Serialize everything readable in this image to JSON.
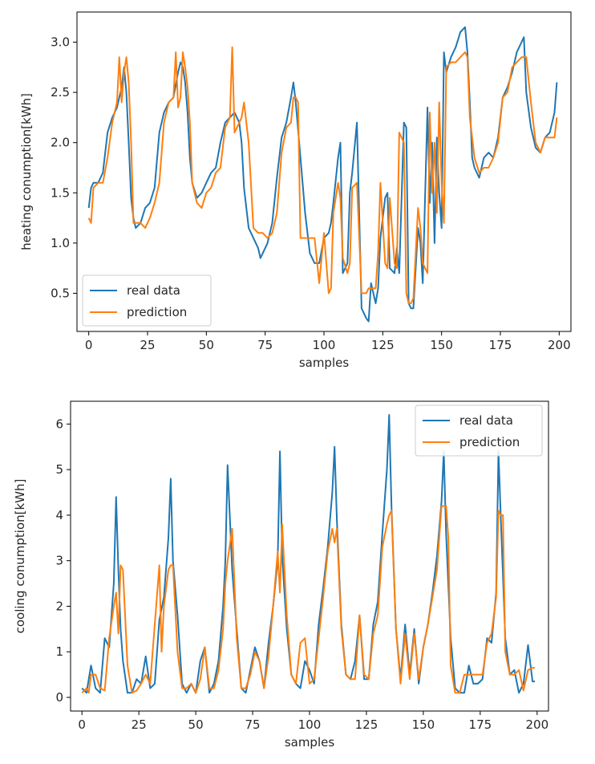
{
  "chart_data": [
    {
      "type": "line",
      "xlabel": "samples",
      "ylabel": "heating conumption[kWh]",
      "xlim": [
        -5,
        205
      ],
      "ylim": [
        0.12,
        3.3
      ],
      "xticks": [
        0,
        25,
        50,
        75,
        100,
        125,
        150,
        175,
        200
      ],
      "xtick_labels": [
        "0",
        "25",
        "50",
        "75",
        "100",
        "125",
        "150",
        "175",
        "200"
      ],
      "yticks": [
        0.5,
        1.0,
        1.5,
        2.0,
        2.5,
        3.0
      ],
      "ytick_labels": [
        "0.5",
        "1.0",
        "1.5",
        "2.0",
        "2.5",
        "3.0"
      ],
      "legend_position": "lower-left",
      "series": [
        {
          "name": "real data",
          "color": "#1f77b4",
          "x": [
            0,
            1,
            2,
            4,
            6,
            8,
            10,
            12,
            14,
            15,
            16,
            17,
            18,
            19,
            20,
            22,
            24,
            26,
            28,
            30,
            32,
            34,
            36,
            38,
            39,
            40,
            41,
            42,
            43,
            44,
            46,
            48,
            50,
            52,
            54,
            56,
            58,
            60,
            62,
            64,
            65,
            66,
            68,
            70,
            72,
            73,
            74,
            76,
            78,
            80,
            82,
            84,
            86,
            87,
            88,
            90,
            92,
            94,
            96,
            98,
            100,
            102,
            103,
            104,
            106,
            107,
            108,
            110,
            111,
            112,
            114,
            116,
            118,
            119,
            120,
            122,
            123,
            124,
            126,
            127,
            128,
            130,
            131,
            132,
            134,
            135,
            136,
            137,
            138,
            140,
            141,
            142,
            144,
            145,
            146,
            147,
            148,
            149,
            150,
            151,
            152,
            154,
            156,
            158,
            160,
            161,
            162,
            163,
            164,
            166,
            168,
            170,
            172,
            174,
            176,
            178,
            180,
            182,
            184,
            185,
            186,
            188,
            190,
            192,
            194,
            196,
            198,
            199
          ],
          "y": [
            1.35,
            1.55,
            1.6,
            1.6,
            1.7,
            2.1,
            2.25,
            2.35,
            2.55,
            2.75,
            2.5,
            2.0,
            1.45,
            1.25,
            1.15,
            1.2,
            1.35,
            1.4,
            1.55,
            2.1,
            2.3,
            2.4,
            2.45,
            2.7,
            2.8,
            2.75,
            2.6,
            2.3,
            1.85,
            1.6,
            1.45,
            1.5,
            1.6,
            1.7,
            1.75,
            2.0,
            2.2,
            2.25,
            2.3,
            2.2,
            2.0,
            1.55,
            1.15,
            1.05,
            0.95,
            0.85,
            0.9,
            1.0,
            1.2,
            1.65,
            2.05,
            2.2,
            2.45,
            2.6,
            2.4,
            1.85,
            1.3,
            0.9,
            0.8,
            0.8,
            1.05,
            1.1,
            1.2,
            1.4,
            1.85,
            2.0,
            0.7,
            0.8,
            1.5,
            1.7,
            2.2,
            0.35,
            0.25,
            0.22,
            0.6,
            0.4,
            0.55,
            1.05,
            1.45,
            1.5,
            0.75,
            0.7,
            0.95,
            0.7,
            2.2,
            2.15,
            0.4,
            0.35,
            0.35,
            1.15,
            1.0,
            0.6,
            2.35,
            1.4,
            2.0,
            1.0,
            2.05,
            1.5,
            1.15,
            2.9,
            2.7,
            2.85,
            2.95,
            3.1,
            3.15,
            2.9,
            2.4,
            1.85,
            1.75,
            1.65,
            1.85,
            1.9,
            1.85,
            2.05,
            2.45,
            2.55,
            2.7,
            2.9,
            3.0,
            3.05,
            2.5,
            2.15,
            1.95,
            1.9,
            2.05,
            2.1,
            2.3,
            2.6
          ]
        },
        {
          "name": "prediction",
          "color": "#ff7f0e",
          "x": [
            0,
            1,
            2,
            4,
            6,
            8,
            10,
            12,
            13,
            14,
            15,
            16,
            17,
            18,
            19,
            20,
            22,
            24,
            26,
            28,
            30,
            32,
            34,
            36,
            37,
            38,
            39,
            40,
            41,
            42,
            43,
            44,
            46,
            48,
            50,
            52,
            54,
            56,
            58,
            60,
            61,
            62,
            64,
            65,
            66,
            68,
            70,
            72,
            73,
            74,
            76,
            78,
            80,
            82,
            84,
            86,
            87,
            88,
            89,
            90,
            92,
            94,
            96,
            98,
            100,
            102,
            103,
            104,
            106,
            107,
            108,
            110,
            111,
            112,
            114,
            116,
            118,
            119,
            120,
            122,
            123,
            124,
            126,
            127,
            128,
            130,
            131,
            132,
            134,
            135,
            136,
            137,
            138,
            140,
            141,
            142,
            144,
            145,
            146,
            147,
            148,
            149,
            150,
            151,
            152,
            154,
            156,
            158,
            160,
            161,
            162,
            164,
            166,
            168,
            170,
            172,
            174,
            176,
            178,
            180,
            182,
            184,
            185,
            186,
            188,
            190,
            192,
            194,
            196,
            198,
            199
          ],
          "y": [
            1.25,
            1.2,
            1.55,
            1.6,
            1.6,
            1.85,
            2.2,
            2.4,
            2.85,
            2.4,
            2.7,
            2.85,
            2.6,
            2.0,
            1.2,
            1.2,
            1.2,
            1.15,
            1.25,
            1.4,
            1.6,
            2.2,
            2.4,
            2.45,
            2.9,
            2.35,
            2.45,
            2.9,
            2.75,
            2.55,
            2.2,
            1.6,
            1.4,
            1.35,
            1.5,
            1.55,
            1.7,
            1.75,
            2.15,
            2.25,
            2.95,
            2.1,
            2.2,
            2.25,
            2.4,
            2.0,
            1.15,
            1.1,
            1.1,
            1.1,
            1.05,
            1.1,
            1.3,
            1.9,
            2.15,
            2.2,
            2.45,
            2.45,
            2.4,
            1.05,
            1.05,
            1.05,
            1.05,
            0.6,
            1.1,
            0.5,
            0.55,
            1.3,
            1.6,
            1.45,
            0.85,
            0.7,
            0.8,
            1.55,
            1.6,
            0.5,
            0.5,
            0.55,
            0.55,
            0.55,
            0.9,
            1.6,
            0.8,
            0.75,
            1.45,
            0.8,
            0.75,
            2.1,
            2.0,
            0.5,
            0.4,
            0.4,
            0.45,
            1.35,
            1.15,
            0.8,
            0.7,
            2.3,
            1.5,
            2.0,
            1.3,
            2.4,
            1.6,
            1.2,
            2.75,
            2.8,
            2.8,
            2.85,
            2.9,
            2.85,
            2.25,
            1.85,
            1.7,
            1.75,
            1.75,
            1.85,
            2.0,
            2.45,
            2.5,
            2.75,
            2.8,
            2.85,
            2.85,
            2.85,
            2.4,
            2.0,
            1.9,
            2.05,
            2.05,
            2.05,
            2.25
          ]
        }
      ]
    },
    {
      "type": "line",
      "xlabel": "samples",
      "ylabel": "cooling conumption[kWh]",
      "xlim": [
        -5,
        205
      ],
      "ylim": [
        -0.3,
        6.5
      ],
      "xticks": [
        0,
        25,
        50,
        75,
        100,
        125,
        150,
        175,
        200
      ],
      "xtick_labels": [
        "0",
        "25",
        "50",
        "75",
        "100",
        "125",
        "150",
        "175",
        "200"
      ],
      "yticks": [
        0,
        1,
        2,
        3,
        4,
        5,
        6
      ],
      "ytick_labels": [
        "0",
        "1",
        "2",
        "3",
        "4",
        "5",
        "6"
      ],
      "legend_position": "upper-right",
      "series": [
        {
          "name": "real data",
          "color": "#1f77b4",
          "x": [
            0,
            2,
            4,
            6,
            8,
            10,
            12,
            14,
            15,
            16,
            17,
            18,
            20,
            22,
            24,
            26,
            28,
            30,
            32,
            34,
            36,
            38,
            39,
            40,
            42,
            44,
            46,
            48,
            50,
            52,
            54,
            56,
            58,
            60,
            62,
            63,
            64,
            66,
            68,
            70,
            72,
            74,
            76,
            78,
            80,
            82,
            84,
            86,
            87,
            88,
            90,
            92,
            94,
            96,
            98,
            100,
            102,
            104,
            106,
            108,
            110,
            111,
            112,
            114,
            116,
            118,
            120,
            122,
            124,
            126,
            128,
            130,
            132,
            134,
            135,
            136,
            138,
            140,
            142,
            144,
            146,
            148,
            150,
            152,
            154,
            156,
            158,
            159,
            160,
            162,
            164,
            166,
            168,
            170,
            172,
            174,
            176,
            178,
            180,
            182,
            183,
            184,
            186,
            188,
            190,
            192,
            194,
            196,
            198,
            199
          ],
          "y": [
            0.2,
            0.1,
            0.7,
            0.2,
            0.1,
            1.3,
            1.1,
            2.5,
            4.4,
            2.8,
            1.5,
            0.8,
            0.1,
            0.1,
            0.4,
            0.3,
            0.9,
            0.2,
            0.3,
            1.7,
            2.2,
            3.5,
            4.8,
            3.0,
            1.8,
            0.3,
            0.1,
            0.3,
            0.1,
            0.8,
            1.1,
            0.1,
            0.3,
            0.8,
            2.0,
            3.0,
            5.1,
            2.8,
            1.5,
            0.2,
            0.1,
            0.6,
            1.1,
            0.8,
            0.2,
            1.2,
            2.0,
            3.0,
            5.4,
            3.1,
            1.5,
            0.5,
            0.3,
            0.2,
            0.8,
            0.6,
            0.3,
            1.6,
            2.4,
            3.3,
            4.5,
            5.5,
            3.9,
            1.6,
            0.5,
            0.4,
            0.8,
            1.8,
            0.4,
            0.4,
            1.6,
            2.1,
            3.6,
            5.0,
            6.2,
            4.2,
            1.5,
            0.4,
            1.6,
            0.5,
            1.5,
            0.3,
            1.1,
            1.6,
            2.3,
            3.1,
            4.3,
            5.4,
            3.6,
            1.3,
            0.2,
            0.1,
            0.1,
            0.7,
            0.3,
            0.3,
            0.4,
            1.3,
            1.2,
            2.3,
            5.4,
            4.0,
            1.3,
            0.5,
            0.6,
            0.1,
            0.3,
            1.15,
            0.35,
            0.35
          ]
        },
        {
          "name": "prediction",
          "color": "#ff7f0e",
          "x": [
            0,
            2,
            3,
            4,
            6,
            8,
            10,
            12,
            14,
            15,
            16,
            17,
            18,
            20,
            22,
            24,
            26,
            28,
            30,
            32,
            34,
            35,
            36,
            38,
            39,
            40,
            42,
            44,
            46,
            48,
            50,
            52,
            54,
            56,
            58,
            60,
            62,
            63,
            64,
            66,
            68,
            70,
            72,
            74,
            76,
            78,
            80,
            82,
            84,
            86,
            87,
            88,
            90,
            92,
            94,
            96,
            98,
            100,
            102,
            104,
            106,
            108,
            110,
            111,
            112,
            114,
            116,
            118,
            120,
            122,
            124,
            126,
            128,
            130,
            132,
            134,
            135,
            136,
            138,
            140,
            142,
            144,
            146,
            148,
            150,
            152,
            154,
            156,
            158,
            160,
            161,
            162,
            164,
            166,
            168,
            170,
            172,
            174,
            176,
            178,
            180,
            182,
            183,
            184,
            185,
            186,
            188,
            190,
            192,
            194,
            196,
            198,
            199
          ],
          "y": [
            0.1,
            0.2,
            0.1,
            0.5,
            0.5,
            0.2,
            0.15,
            1.3,
            2.0,
            2.3,
            1.4,
            2.9,
            2.8,
            0.7,
            0.1,
            0.15,
            0.3,
            0.5,
            0.3,
            1.6,
            2.9,
            1.0,
            2.0,
            2.8,
            2.9,
            2.9,
            1.0,
            0.2,
            0.2,
            0.3,
            0.1,
            0.4,
            1.1,
            0.2,
            0.2,
            0.6,
            1.5,
            2.5,
            3.0,
            3.7,
            1.3,
            0.2,
            0.2,
            0.5,
            1.0,
            0.8,
            0.2,
            0.9,
            2.0,
            3.2,
            2.3,
            3.8,
            1.8,
            0.5,
            0.3,
            1.2,
            1.3,
            0.3,
            0.4,
            1.3,
            2.2,
            3.2,
            3.7,
            3.4,
            3.7,
            1.5,
            0.5,
            0.4,
            0.4,
            1.8,
            0.5,
            0.4,
            1.4,
            1.8,
            3.3,
            3.8,
            4.0,
            4.1,
            1.5,
            0.3,
            1.4,
            0.4,
            1.4,
            0.4,
            1.1,
            1.6,
            2.2,
            2.8,
            4.2,
            4.2,
            3.5,
            0.7,
            0.1,
            0.1,
            0.5,
            0.5,
            0.5,
            0.5,
            0.5,
            1.2,
            1.4,
            2.2,
            4.1,
            4.0,
            4.0,
            1.0,
            0.5,
            0.5,
            0.6,
            0.15,
            0.6,
            0.65,
            0.65
          ]
        }
      ]
    }
  ]
}
